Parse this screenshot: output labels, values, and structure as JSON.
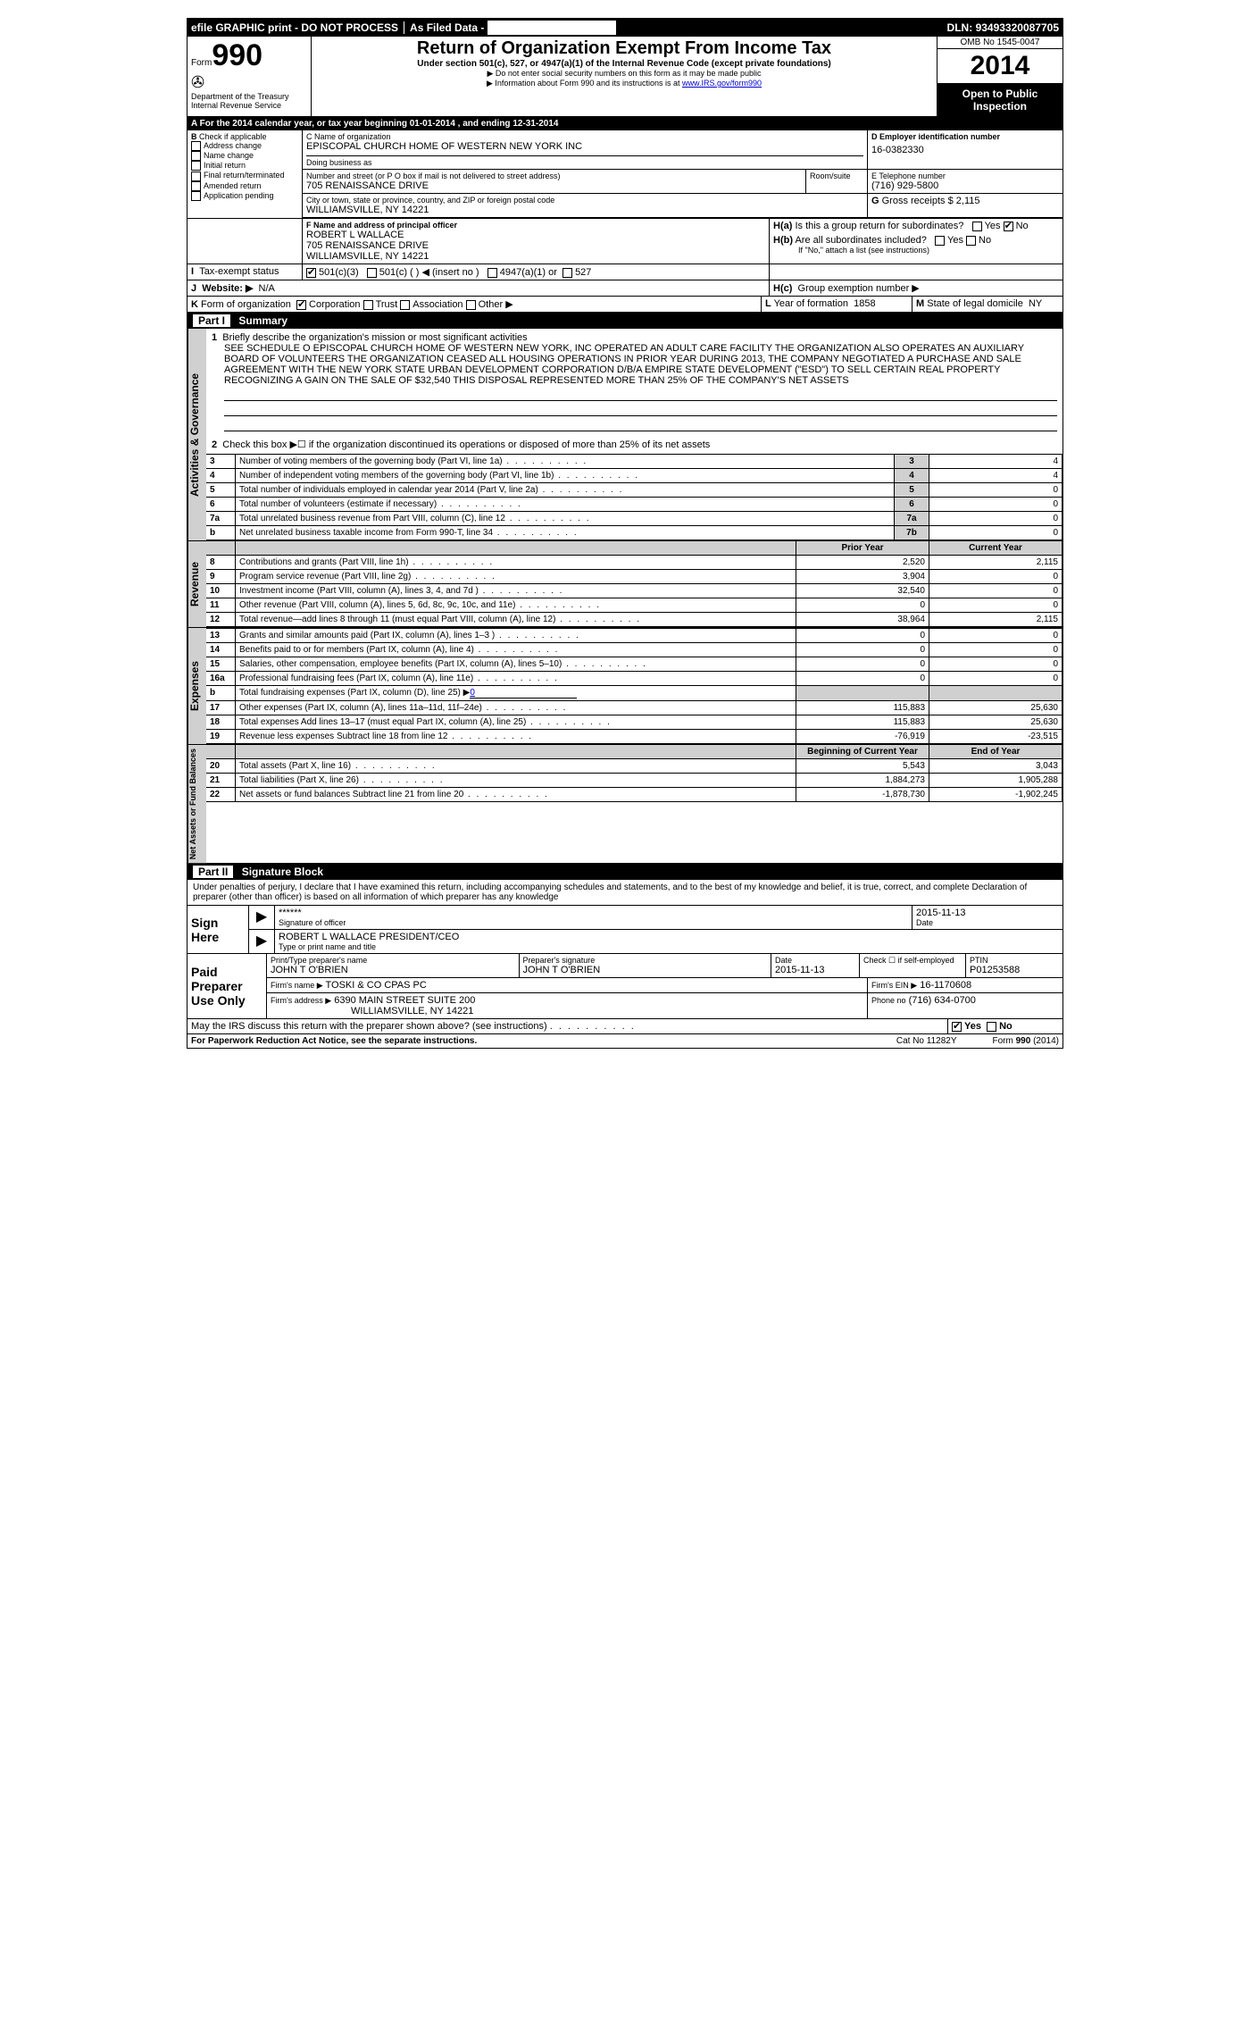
{
  "topbar": {
    "efile": "efile GRAPHIC print - DO NOT PROCESS",
    "asfiled": "As Filed Data -",
    "dln_label": "DLN:",
    "dln": "93493320087705"
  },
  "header": {
    "form_label": "Form",
    "form_no": "990",
    "dept": "Department of the Treasury",
    "irs": "Internal Revenue Service",
    "title": "Return of Organization Exempt From Income Tax",
    "subtitle": "Under section 501(c), 527, or 4947(a)(1) of the Internal Revenue Code (except private foundations)",
    "note1": "▶ Do not enter social security numbers on this form as it may be made public",
    "note2_pre": "▶ Information about Form 990 and its instructions is at ",
    "note2_link": "www.IRS.gov/form990",
    "omb": "OMB No 1545-0047",
    "year": "2014",
    "open": "Open to Public Inspection"
  },
  "A": {
    "text": "A  For the 2014 calendar year, or tax year beginning 01-01-2014    , and ending 12-31-2014"
  },
  "B": {
    "label": "B",
    "check_label": "Check if applicable",
    "items": [
      "Address change",
      "Name change",
      "Initial return",
      "Final return/terminated",
      "Amended return",
      "Application pending"
    ]
  },
  "C": {
    "name_label": "C Name of organization",
    "name": "EPISCOPAL CHURCH HOME OF WESTERN NEW YORK INC",
    "dba_label": "Doing business as",
    "dba": "",
    "addr_label": "Number and street (or P O box if mail is not delivered to street address)",
    "room_label": "Room/suite",
    "addr": "705 RENAISSANCE DRIVE",
    "city_label": "City or town, state or province, country, and ZIP or foreign postal code",
    "city": "WILLIAMSVILLE, NY  14221"
  },
  "D": {
    "label": "D  Employer identification number",
    "ein": "16-0382330"
  },
  "E": {
    "label": "E Telephone number",
    "phone": "(716) 929-5800"
  },
  "G": {
    "label": "G",
    "text": "Gross receipts $",
    "val": "2,115"
  },
  "F": {
    "label": "F   Name and address of principal officer",
    "name": "ROBERT L WALLACE",
    "addr1": "705 RENAISSANCE DRIVE",
    "addr2": "WILLIAMSVILLE, NY  14221"
  },
  "H": {
    "a_label": "H(a)",
    "a_text": "Is this a group return for subordinates?",
    "a_yes": "Yes",
    "a_no": "No",
    "b_label": "H(b)",
    "b_text": "Are all subordinates included?",
    "b_note": "If \"No,\" attach a list  (see instructions)",
    "c_label": "H(c)",
    "c_text": "Group exemption number ▶"
  },
  "I": {
    "label": "I",
    "text": "Tax-exempt status",
    "opts": [
      "501(c)(3)",
      "501(c) (   ) ◀ (insert no )",
      "4947(a)(1) or",
      "527"
    ]
  },
  "J": {
    "label": "J",
    "text": "Website: ▶",
    "val": "N/A"
  },
  "K": {
    "label": "K",
    "text": "Form of organization",
    "opts": [
      "Corporation",
      "Trust",
      "Association",
      "Other ▶"
    ]
  },
  "L": {
    "label": "L",
    "text": "Year of formation",
    "val": "1858"
  },
  "M": {
    "label": "M",
    "text": "State of legal domicile",
    "val": "NY"
  },
  "partI": {
    "label": "Part I",
    "title": "Summary",
    "q1_label": "1",
    "q1_text": "Briefly describe the organization's mission or most significant activities",
    "q1_body": "SEE SCHEDULE O EPISCOPAL CHURCH HOME OF WESTERN NEW YORK, INC  OPERATED AN ADULT CARE FACILITY  THE ORGANIZATION ALSO OPERATES AN AUXILIARY BOARD OF VOLUNTEERS  THE ORGANIZATION CEASED ALL HOUSING OPERATIONS IN PRIOR YEAR  DURING 2013, THE COMPANY NEGOTIATED A PURCHASE AND SALE AGREEMENT WITH THE NEW YORK STATE URBAN DEVELOPMENT CORPORATION D/B/A EMPIRE STATE DEVELOPMENT (\"ESD\") TO SELL CERTAIN REAL PROPERTY RECOGNIZING A GAIN ON THE SALE OF $32,540  THIS DISPOSAL REPRESENTED MORE THAN 25% OF THE COMPANY'S NET ASSETS",
    "q2": "Check this box ▶☐ if the organization discontinued its operations or disposed of more than 25% of its net assets",
    "rows_ag": [
      {
        "n": "3",
        "t": "Number of voting members of the governing body (Part VI, line 1a)",
        "box": "3",
        "v": "4"
      },
      {
        "n": "4",
        "t": "Number of independent voting members of the governing body (Part VI, line 1b)",
        "box": "4",
        "v": "4"
      },
      {
        "n": "5",
        "t": "Total number of individuals employed in calendar year 2014 (Part V, line 2a)",
        "box": "5",
        "v": "0"
      },
      {
        "n": "6",
        "t": "Total number of volunteers (estimate if necessary)",
        "box": "6",
        "v": "0"
      },
      {
        "n": "7a",
        "t": "Total unrelated business revenue from Part VIII, column (C), line 12",
        "box": "7a",
        "v": "0"
      },
      {
        "n": "b",
        "t": "Net unrelated business taxable income from Form 990-T, line 34",
        "box": "7b",
        "v": "0"
      }
    ],
    "prior_label": "Prior Year",
    "current_label": "Current Year",
    "revenue_rows": [
      {
        "n": "8",
        "t": "Contributions and grants (Part VIII, line 1h)",
        "p": "2,520",
        "c": "2,115"
      },
      {
        "n": "9",
        "t": "Program service revenue (Part VIII, line 2g)",
        "p": "3,904",
        "c": "0"
      },
      {
        "n": "10",
        "t": "Investment income (Part VIII, column (A), lines 3, 4, and 7d )",
        "p": "32,540",
        "c": "0"
      },
      {
        "n": "11",
        "t": "Other revenue (Part VIII, column (A), lines 5, 6d, 8c, 9c, 10c, and 11e)",
        "p": "0",
        "c": "0"
      },
      {
        "n": "12",
        "t": "Total revenue—add lines 8 through 11 (must equal Part VIII, column (A), line 12)",
        "p": "38,964",
        "c": "2,115"
      }
    ],
    "expense_rows": [
      {
        "n": "13",
        "t": "Grants and similar amounts paid (Part IX, column (A), lines 1–3 )",
        "p": "0",
        "c": "0"
      },
      {
        "n": "14",
        "t": "Benefits paid to or for members (Part IX, column (A), line 4)",
        "p": "0",
        "c": "0"
      },
      {
        "n": "15",
        "t": "Salaries, other compensation, employee benefits (Part IX, column (A), lines 5–10)",
        "p": "0",
        "c": "0"
      },
      {
        "n": "16a",
        "t": "Professional fundraising fees (Part IX, column (A), line 11e)",
        "p": "0",
        "c": "0"
      }
    ],
    "fund_b": {
      "n": "b",
      "t": "Total fundraising expenses (Part IX, column (D), line 25) ▶",
      "val": "0"
    },
    "expense_rows2": [
      {
        "n": "17",
        "t": "Other expenses (Part IX, column (A), lines 11a–11d, 11f–24e)",
        "p": "115,883",
        "c": "25,630"
      },
      {
        "n": "18",
        "t": "Total expenses  Add lines 13–17 (must equal Part IX, column (A), line 25)",
        "p": "115,883",
        "c": "25,630"
      },
      {
        "n": "19",
        "t": "Revenue less expenses  Subtract line 18 from line 12",
        "p": "-76,919",
        "c": "-23,515"
      }
    ],
    "boy_label": "Beginning of Current Year",
    "eoy_label": "End of Year",
    "net_rows": [
      {
        "n": "20",
        "t": "Total assets (Part X, line 16)",
        "p": "5,543",
        "c": "3,043"
      },
      {
        "n": "21",
        "t": "Total liabilities (Part X, line 26)",
        "p": "1,884,273",
        "c": "1,905,288"
      },
      {
        "n": "22",
        "t": "Net assets or fund balances  Subtract line 21 from line 20",
        "p": "-1,878,730",
        "c": "-1,902,245"
      }
    ]
  },
  "vert": {
    "ag": "Activities & Governance",
    "rev": "Revenue",
    "exp": "Expenses",
    "net": "Net Assets or Fund Balances"
  },
  "partII": {
    "label": "Part II",
    "title": "Signature Block",
    "perjury": "Under penalties of perjury, I declare that I have examined this return, including accompanying schedules and statements, and to the best of my knowledge and belief, it is true, correct, and complete  Declaration of preparer (other than officer) is based on all information of which preparer has any knowledge",
    "sign_here": "Sign Here",
    "sig_stars": "******",
    "sig_date": "2015-11-13",
    "sig_officer_lbl": "Signature of officer",
    "sig_date_lbl": "Date",
    "officer_name": "ROBERT L WALLACE PRESIDENT/CEO",
    "officer_type_lbl": "Type or print name and title",
    "paid": "Paid Preparer Use Only",
    "prep_name_lbl": "Print/Type preparer's name",
    "prep_name": "JOHN T O'BRIEN",
    "prep_sig_lbl": "Preparer's signature",
    "prep_sig": "JOHN T O'BRIEN",
    "prep_date_lbl": "Date",
    "prep_date": "2015-11-13",
    "prep_check": "Check ☐ if self-employed",
    "ptin_lbl": "PTIN",
    "ptin": "P01253588",
    "firm_name_lbl": "Firm's name    ▶",
    "firm_name": "TOSKI & CO CPAS PC",
    "firm_ein_lbl": "Firm's EIN ▶",
    "firm_ein": "16-1170608",
    "firm_addr_lbl": "Firm's address ▶",
    "firm_addr": "6390 MAIN STREET SUITE 200",
    "firm_city": "WILLIAMSVILLE, NY  14221",
    "firm_phone_lbl": "Phone no",
    "firm_phone": "(716) 634-0700",
    "discuss": "May the IRS discuss this return with the preparer shown above? (see instructions)",
    "yes": "Yes",
    "no": "No"
  },
  "footer": {
    "pra": "For Paperwork Reduction Act Notice, see the separate instructions.",
    "cat": "Cat No 11282Y",
    "form": "Form 990 (2014)"
  }
}
